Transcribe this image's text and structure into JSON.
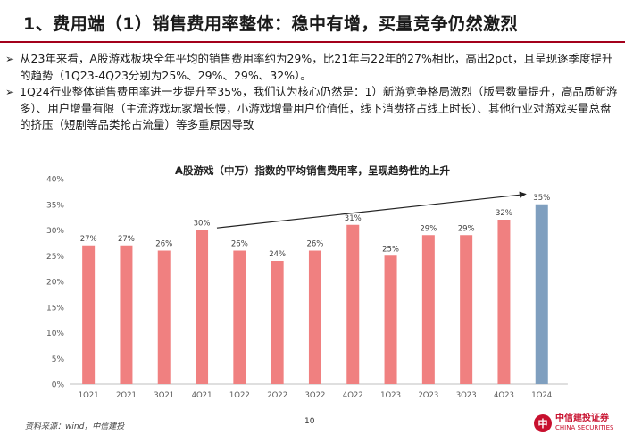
{
  "slide": {
    "title": "1、费用端（1）销售费用率整体：稳中有增，买量竞争仍然激烈",
    "bullets": [
      "从23年来看，A股游戏板块全年平均的销售费用率约为29%，比21年与22年的27%相比，高出2pct，且呈现逐季度提升的趋势（1Q23-4Q23分别为25%、29%、29%、32%）。",
      "1Q24行业整体销售费用率进一步提升至35%，我们认为核心仍然是：1）新游竞争格局激烈（版号数量提升，高品质新游多）、用户增量有限（主流游戏玩家增长慢，小游戏增量用户价值低，线下消费挤占线上时长）、其他行业对游戏买量总盘的挤压（短剧等品类抢占流量）等多重原因导致"
    ],
    "bullet_marker": "➢",
    "source": "资料来源：wind，中信建投",
    "page_number": "10",
    "logo_cn": "中信建投证券",
    "logo_en": "CHINA SECURITIES",
    "logo_glyph": "中"
  },
  "chart_data": {
    "type": "bar",
    "title": "A股游戏（中万）指数的平均销售费用率，呈现趋势性的上升",
    "categories": [
      "1Q21",
      "2Q21",
      "3Q21",
      "4Q21",
      "1Q22",
      "2Q22",
      "3Q22",
      "4Q22",
      "1Q23",
      "2Q23",
      "3Q23",
      "4Q23",
      "1Q24"
    ],
    "values": [
      27,
      27,
      26,
      30,
      26,
      24,
      26,
      31,
      25,
      29,
      29,
      32,
      35
    ],
    "data_labels": [
      "27%",
      "27%",
      "26%",
      "30%",
      "26%",
      "24%",
      "26%",
      "31%",
      "25%",
      "29%",
      "29%",
      "32%",
      "35%"
    ],
    "y_ticks": [
      "0%",
      "5%",
      "10%",
      "15%",
      "20%",
      "25%",
      "30%",
      "35%",
      "40%"
    ],
    "ylim": [
      0,
      40
    ],
    "grid": false,
    "colors": {
      "bar": "#f08080",
      "highlight": "#7f9fbf",
      "arrow": "#222222"
    },
    "highlight_index": 12,
    "annotation": "upward trend arrow"
  }
}
